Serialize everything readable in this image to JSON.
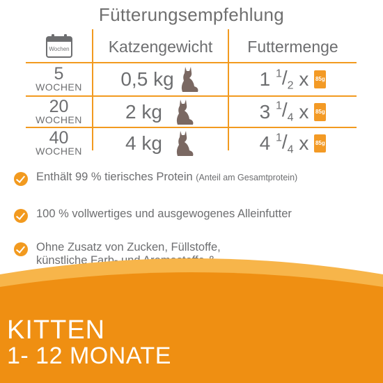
{
  "title": "Fütterungsempfehlung",
  "calendar_icon": {
    "label": "Wochen"
  },
  "headers": {
    "weight": "Katzengewicht",
    "amount": "Futtermenge"
  },
  "rows": [
    {
      "weeks": "5",
      "weeks_label": "WOCHEN",
      "weight": "0,5 kg",
      "amount_int": "1",
      "amount_num": "1",
      "amount_den": "2",
      "amount_x": "x",
      "pouch": "85g"
    },
    {
      "weeks": "20",
      "weeks_label": "WOCHEN",
      "weight": "2 kg",
      "amount_int": "3",
      "amount_num": "1",
      "amount_den": "4",
      "amount_x": "x",
      "pouch": "85g"
    },
    {
      "weeks": "40",
      "weeks_label": "WOCHEN",
      "weight": "4 kg",
      "amount_int": "4",
      "amount_num": "1",
      "amount_den": "4",
      "amount_x": "x",
      "pouch": "85g"
    }
  ],
  "bullets": [
    {
      "text": "Enthält 99 % tierisches Protein",
      "note": "(Anteil am Gesamtprotein)"
    },
    {
      "text": "100 % vollwertiges und ausgewogenes Alleinfutter"
    },
    {
      "text": "Ohne Zusatz von Zucken, Füllstoffe, künstliche Farb- und Aromastoffe & GVO"
    }
  ],
  "footer": {
    "line1": "KITTEN",
    "line2": "1- 12 MONATE"
  },
  "colors": {
    "accent": "#f29a1f",
    "text": "#6d6e70",
    "band_light": "#f7b54a",
    "band_dark": "#ef8f12",
    "cat": "#7a6862"
  }
}
